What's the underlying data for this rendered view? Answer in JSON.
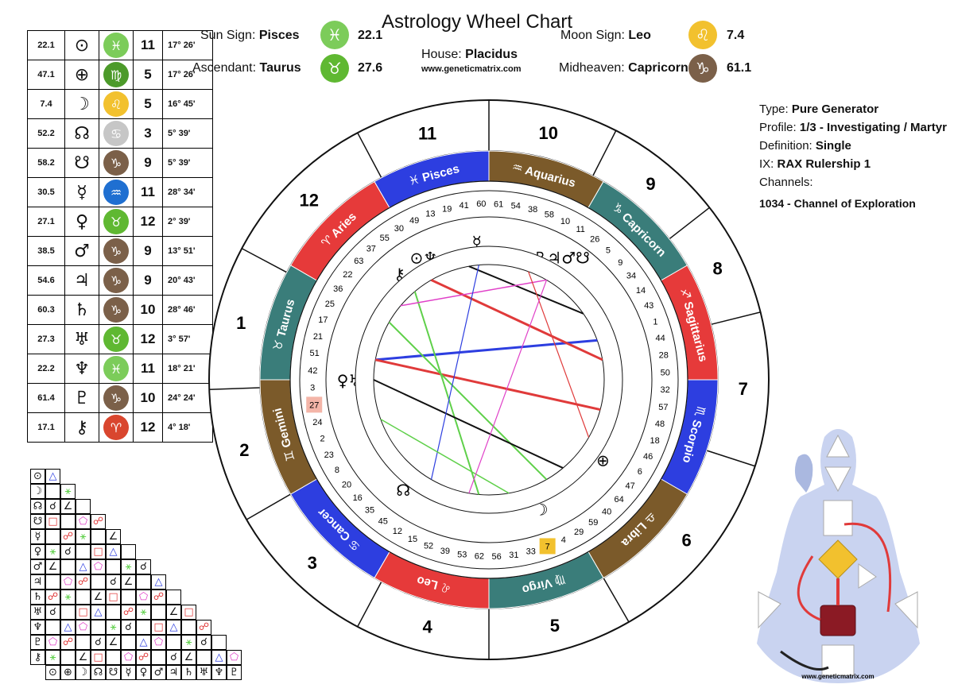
{
  "title": "Astrology Wheel Chart",
  "header": {
    "sun_label": "Sun Sign:",
    "sun_value": "Pisces",
    "sun_num": "22.1",
    "asc_label": "Ascendant:",
    "asc_value": "Taurus",
    "asc_num": "27.6",
    "house_label": "House:",
    "house_value": "Placidus",
    "url": "www.geneticmatrix.com",
    "moon_label": "Moon Sign:",
    "moon_value": "Leo",
    "moon_num": "7.4",
    "mid_label": "Midheaven:",
    "mid_value": "Capricorn",
    "mid_num": "61.1",
    "colors": {
      "pisces": "#7ccc5a",
      "taurus": "#5fb832",
      "leo": "#f2c12e",
      "capricorn": "#7b6049"
    }
  },
  "reading": {
    "type_label": "Type:",
    "type_value": "Pure Generator",
    "profile_label": "Profile:",
    "profile_value": "1/3 - Investigating / Martyr",
    "definition_label": "Definition:",
    "definition_value": "Single",
    "ix_label": "IX:",
    "ix_value": "RAX Rulership 1",
    "channels_label": "Channels:",
    "channel_1": "1034 - Channel of Exploration"
  },
  "planets": [
    {
      "deg": "22.1",
      "glyph": "⊙",
      "icon": "pisces-icon",
      "color": "#7ccc5a",
      "sym": "♓",
      "house": "11",
      "pos": "17° 26'"
    },
    {
      "deg": "47.1",
      "glyph": "⊕",
      "icon": "virgo-icon",
      "color": "#4c9a2a",
      "sym": "♍",
      "house": "5",
      "pos": "17° 26'"
    },
    {
      "deg": "7.4",
      "glyph": "☽",
      "icon": "leo-icon",
      "color": "#f2c12e",
      "sym": "♌",
      "house": "5",
      "pos": "16° 45'"
    },
    {
      "deg": "52.2",
      "glyph": "☊",
      "icon": "cancer-icon",
      "color": "#c6c6c6",
      "sym": "♋",
      "house": "3",
      "pos": "5° 39'"
    },
    {
      "deg": "58.2",
      "glyph": "☋",
      "icon": "capricorn-icon",
      "color": "#7b6049",
      "sym": "♑",
      "house": "9",
      "pos": "5° 39'"
    },
    {
      "deg": "30.5",
      "glyph": "☿",
      "icon": "aquarius-icon",
      "color": "#1f6fd1",
      "sym": "♒",
      "house": "11",
      "pos": "28° 34'"
    },
    {
      "deg": "27.1",
      "glyph": "♀",
      "icon": "taurus-icon",
      "color": "#5fb832",
      "sym": "♉",
      "house": "12",
      "pos": "2° 39'"
    },
    {
      "deg": "38.5",
      "glyph": "♂",
      "icon": "capricorn-icon",
      "color": "#7b6049",
      "sym": "♑",
      "house": "9",
      "pos": "13° 51'"
    },
    {
      "deg": "54.6",
      "glyph": "♃",
      "icon": "capricorn-icon",
      "color": "#7b6049",
      "sym": "♑",
      "house": "9",
      "pos": "20° 43'"
    },
    {
      "deg": "60.3",
      "glyph": "♄",
      "icon": "capricorn-icon",
      "color": "#7b6049",
      "sym": "♑",
      "house": "10",
      "pos": "28° 46'"
    },
    {
      "deg": "27.3",
      "glyph": "♅",
      "icon": "taurus-icon",
      "color": "#5fb832",
      "sym": "♉",
      "house": "12",
      "pos": "3° 57'"
    },
    {
      "deg": "22.2",
      "glyph": "♆",
      "icon": "pisces-icon",
      "color": "#7ccc5a",
      "sym": "♓",
      "house": "11",
      "pos": "18° 21'"
    },
    {
      "deg": "61.4",
      "glyph": "♇",
      "icon": "capricorn-icon",
      "color": "#7b6049",
      "sym": "♑",
      "house": "10",
      "pos": "24° 24'"
    },
    {
      "deg": "17.1",
      "glyph": "⚷",
      "icon": "aries-icon",
      "color": "#d9462e",
      "sym": "♈",
      "house": "12",
      "pos": "4° 18'"
    }
  ],
  "aspect_grid": {
    "row_glyphs": [
      "⊙",
      "☽",
      "☊",
      "☋",
      "☿",
      "♀",
      "♂",
      "♃",
      "♄",
      "♅",
      "♆",
      "♇",
      "⚷"
    ],
    "col_glyphs": [
      "⊙",
      "⊕",
      "☽",
      "☊",
      "☋",
      "☿",
      "♀",
      "♂",
      "♃",
      "♄",
      "♅",
      "♆",
      "♇"
    ]
  },
  "wheel": {
    "signs": [
      {
        "name": "Aries",
        "sym": "♈",
        "color": "#e63a3a"
      },
      {
        "name": "Pisces",
        "sym": "♓",
        "color": "#2d3ee0"
      },
      {
        "name": "Aquarius",
        "sym": "♒",
        "color": "#7b5a2a"
      },
      {
        "name": "Capricorn",
        "sym": "♑",
        "color": "#3a7d7a"
      },
      {
        "name": "Sagittarius",
        "sym": "♐",
        "color": "#e63a3a"
      },
      {
        "name": "Scorpio",
        "sym": "♏",
        "color": "#2d3ee0"
      },
      {
        "name": "Libra",
        "sym": "♎",
        "color": "#7b5a2a"
      },
      {
        "name": "Virgo",
        "sym": "♍",
        "color": "#3a7d7a"
      },
      {
        "name": "Leo",
        "sym": "♌",
        "color": "#e63a3a"
      },
      {
        "name": "Cancer",
        "sym": "♋",
        "color": "#2d3ee0"
      },
      {
        "name": "Gemini",
        "sym": "♊",
        "color": "#7b5a2a"
      },
      {
        "name": "Taurus",
        "sym": "♉",
        "color": "#3a7d7a"
      }
    ],
    "houses": [
      "12",
      "11",
      "10",
      "9",
      "8",
      "7",
      "6",
      "5",
      "4",
      "3",
      "2",
      "1"
    ],
    "gates": [
      "17",
      "21",
      "51",
      "42",
      "3",
      "27",
      "24",
      "2",
      "23",
      "8",
      "20",
      "16",
      "35",
      "45",
      "12",
      "15",
      "52",
      "39",
      "53",
      "62",
      "56",
      "31",
      "33",
      "7",
      "4",
      "29",
      "59",
      "40",
      "64",
      "47",
      "6",
      "46",
      "18",
      "48",
      "57",
      "32",
      "50",
      "28",
      "44",
      "1",
      "43",
      "14",
      "34",
      "9",
      "5",
      "26",
      "11",
      "10",
      "58",
      "38",
      "54",
      "61",
      "60",
      "41",
      "19",
      "13",
      "49",
      "30",
      "55",
      "37",
      "63",
      "22",
      "36",
      "25"
    ],
    "highlight_gates": {
      "27": "#f4b5a8",
      "7": "#f2c12e"
    },
    "planet_glyphs": [
      {
        "g": "⊙♆",
        "a": 118
      },
      {
        "g": "☿",
        "a": 95
      },
      {
        "g": "♄♇♃♂☋",
        "a": 62
      },
      {
        "g": "⚷",
        "a": 130
      },
      {
        "g": "♀♅",
        "a": 180
      },
      {
        "g": "☊",
        "a": 232
      },
      {
        "g": "☽",
        "a": 292
      },
      {
        "g": "⊕",
        "a": 325
      }
    ]
  },
  "bodygraph": {
    "url": "www.geneticmatrix.com"
  }
}
